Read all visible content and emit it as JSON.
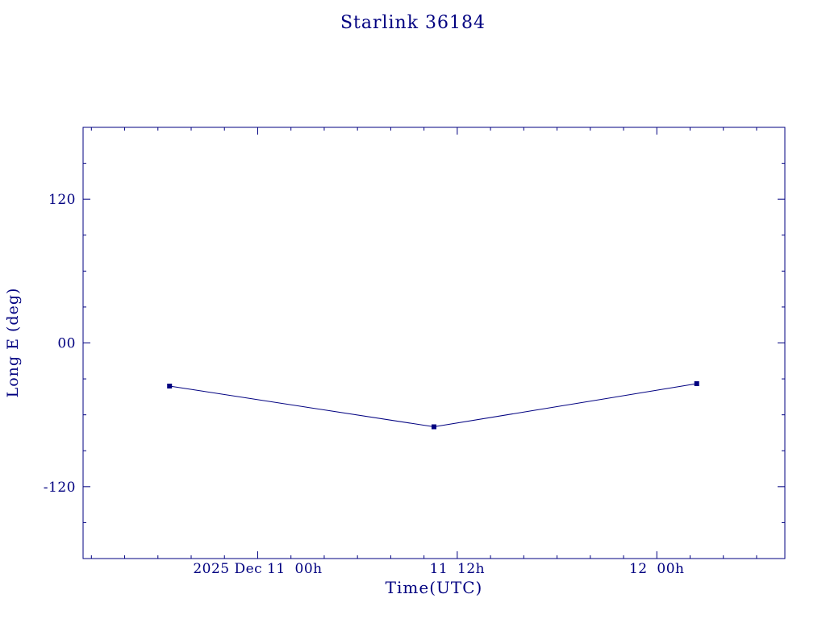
{
  "page": {
    "background": "#ffffff",
    "accent_color": "#000080"
  },
  "chart_data": {
    "type": "line",
    "title": "Starlink 36184",
    "xlabel": "Time(UTC)",
    "ylabel": "Long E (deg)",
    "color": "#000080",
    "background": "#ffffff",
    "grid": false,
    "legend": "none",
    "xlim_hours_from_dec11_00h": [
      -10.5,
      31.7
    ],
    "ylim": [
      -180,
      180
    ],
    "x_major_ticks": [
      0,
      12,
      24
    ],
    "x_tick_labels": [
      "2025 Dec 11  00h",
      "11  12h",
      "12  00h"
    ],
    "x_minor_step": 2,
    "y_major_ticks": [
      120,
      0,
      -120
    ],
    "y_tick_labels": [
      "120",
      "00",
      "-120"
    ],
    "y_minor_step": 30,
    "series": [
      {
        "name": "Long E (deg)",
        "marker": "square",
        "points": [
          {
            "x_hours": -5.3,
            "y_deg": -36
          },
          {
            "x_hours": 10.6,
            "y_deg": -70
          },
          {
            "x_hours": 26.4,
            "y_deg": -34
          }
        ]
      }
    ]
  }
}
